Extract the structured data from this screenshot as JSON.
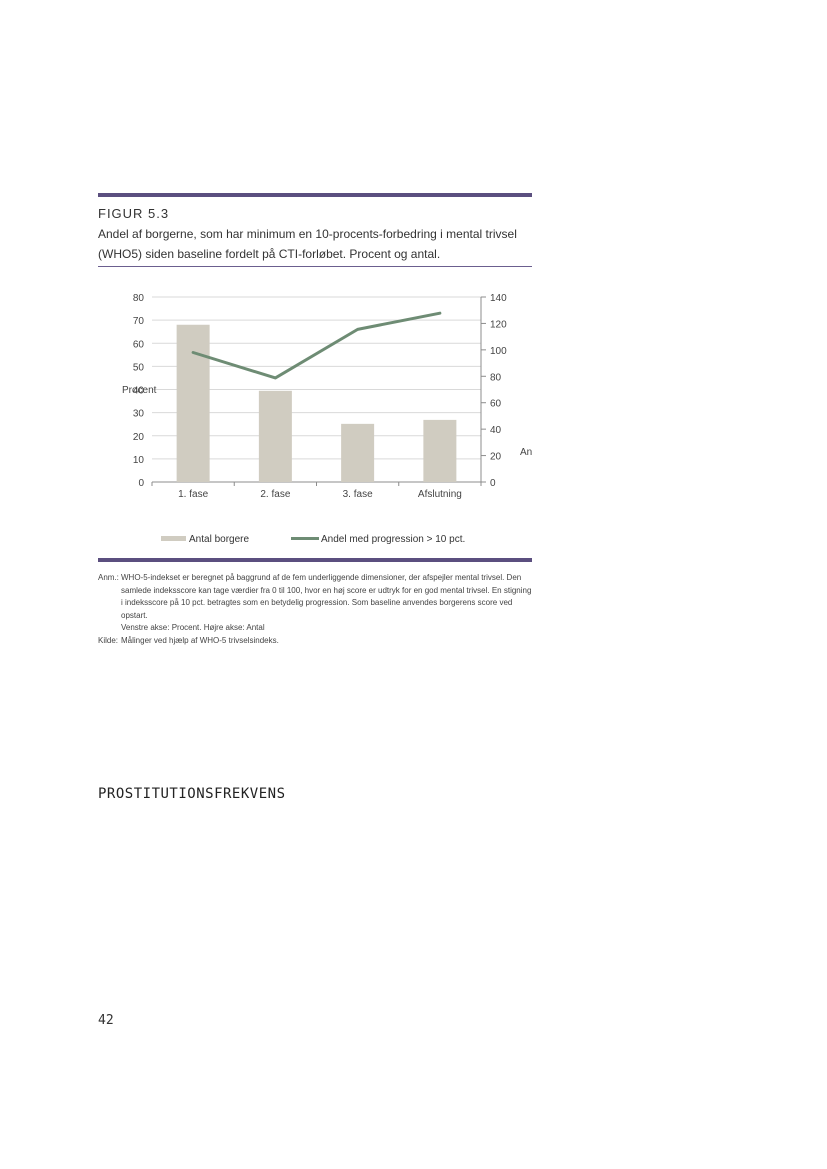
{
  "figure": {
    "label": "FIGUR 5.3",
    "caption": "Andel af borgerne, som har minimum en 10-procents-forbedring i mental trivsel (WHO5) siden baseline fordelt på CTI-forløbet. Procent og antal."
  },
  "chart_data": {
    "type": "bar",
    "categories": [
      "1. fase",
      "2. fase",
      "3. fase",
      "Afslutning"
    ],
    "series": [
      {
        "name": "Antal borgere",
        "type": "bar",
        "axis": "right",
        "values": [
          119,
          69,
          44,
          47
        ]
      },
      {
        "name": "Andel med progression > 10 pct.",
        "type": "line",
        "axis": "left",
        "values": [
          56,
          45,
          66,
          73
        ]
      }
    ],
    "ylabel_left": "Procent",
    "ylabel_right": "An",
    "ylim_left": [
      0,
      80
    ],
    "yticks_left": [
      0,
      10,
      20,
      30,
      40,
      50,
      60,
      70,
      80
    ],
    "ylim_right": [
      0,
      140
    ],
    "yticks_right": [
      0,
      20,
      40,
      60,
      80,
      100,
      120,
      140
    ],
    "grid": true,
    "legend": "bottom",
    "colors": {
      "bar": "#d0ccc1",
      "line": "#6e8c74",
      "grid": "#d9d9d9",
      "axis": "#8c8c8c"
    }
  },
  "notes": [
    {
      "label": "Anm.:",
      "text": "WHO-5-indekset er beregnet på baggrund af de fem underliggende dimensioner, der afspejler mental trivsel. Den samlede indeksscore kan tage værdier fra 0 til 100, hvor en høj score er udtryk for en god mental trivsel. En stigning i indeksscore på 10 pct. betragtes som en betydelig progression. Som baseline anvendes borgerens score ved opstart."
    },
    {
      "label": "",
      "text": "Venstre akse: Procent. Højre akse: Antal"
    },
    {
      "label": "Kilde:",
      "text": "Målinger ved hjælp af WHO-5 trivselsindeks."
    }
  ],
  "section_heading": "PROSTITUTIONSFREKVENS",
  "page_number": "42"
}
